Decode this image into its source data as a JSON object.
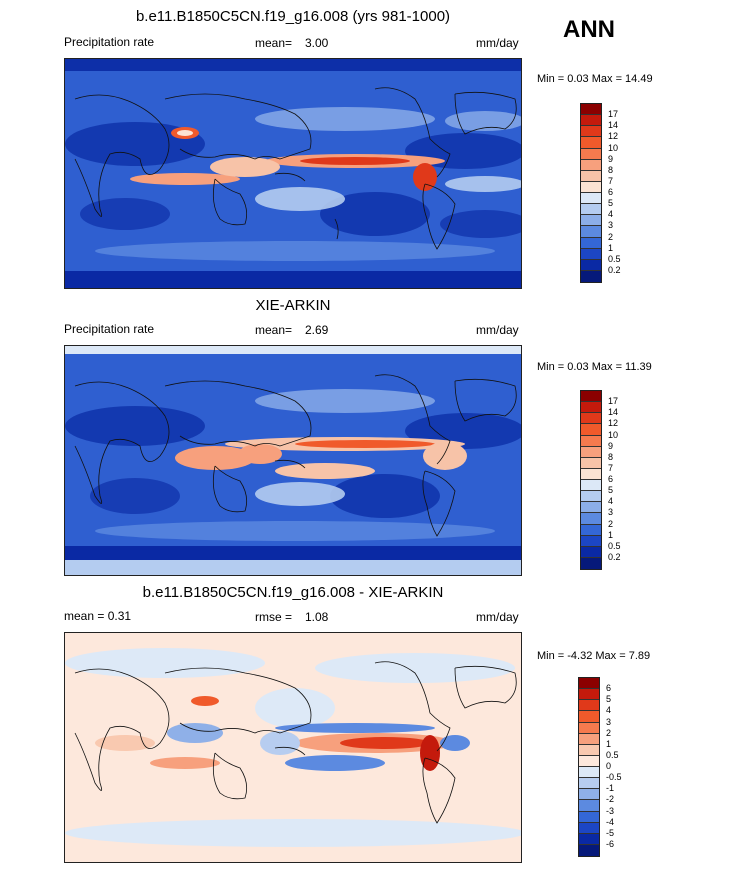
{
  "season": "ANN",
  "panels": [
    {
      "title": "b.e11.B1850C5CN.f19_g16.008 (yrs 981-1000)",
      "left_label": "Precipitation rate",
      "mean_label": "mean=",
      "mean_value": "3.00",
      "units": "mm/day",
      "min_max": "Min =   0.03 Max =  14.49",
      "colorbar": {
        "labels": [
          "17",
          "14",
          "12",
          "10",
          "9",
          "8",
          "7",
          "6",
          "5",
          "4",
          "3",
          "2",
          "1",
          "0.5",
          "0.2"
        ],
        "colors": [
          "#8b0000",
          "#c41a0c",
          "#e0391a",
          "#f05a2b",
          "#f57a4e",
          "#f7a07d",
          "#f7c3a8",
          "#fbe3d3",
          "#dce8f7",
          "#b4ccf0",
          "#8caee8",
          "#5c8ae0",
          "#3467d6",
          "#1c46c4",
          "#0a29a4",
          "#06197a"
        ]
      }
    },
    {
      "title": "XIE-ARKIN",
      "left_label": "Precipitation rate",
      "mean_label": "mean=",
      "mean_value": "2.69",
      "units": "mm/day",
      "min_max": "Min =   0.03 Max =  11.39",
      "colorbar": {
        "labels": [
          "17",
          "14",
          "12",
          "10",
          "9",
          "8",
          "7",
          "6",
          "5",
          "4",
          "3",
          "2",
          "1",
          "0.5",
          "0.2"
        ],
        "colors": [
          "#8b0000",
          "#c41a0c",
          "#e0391a",
          "#f05a2b",
          "#f57a4e",
          "#f7a07d",
          "#f7c3a8",
          "#fbe3d3",
          "#dce8f7",
          "#b4ccf0",
          "#8caee8",
          "#5c8ae0",
          "#3467d6",
          "#1c46c4",
          "#0a29a4",
          "#06197a"
        ]
      }
    },
    {
      "title": "b.e11.B1850C5CN.f19_g16.008 - XIE-ARKIN",
      "left_label": "mean =   0.31",
      "mean_label": "rmse =",
      "mean_value": "1.08",
      "units": "mm/day",
      "min_max": "Min =  -4.32 Max =   7.89",
      "colorbar": {
        "labels": [
          "6",
          "5",
          "4",
          "3",
          "2",
          "1",
          "0.5",
          "0",
          "-0.5",
          "-1",
          "-2",
          "-3",
          "-4",
          "-5",
          "-6"
        ],
        "colors": [
          "#8b0000",
          "#c41a0c",
          "#e0391a",
          "#f05a2b",
          "#f57a4e",
          "#f7a07d",
          "#f9c9b0",
          "#fde8dc",
          "#dde9f7",
          "#b7cdf0",
          "#8fb0e8",
          "#5c8ae0",
          "#3467d6",
          "#1c46c4",
          "#0a29a4",
          "#06197a"
        ]
      }
    }
  ]
}
